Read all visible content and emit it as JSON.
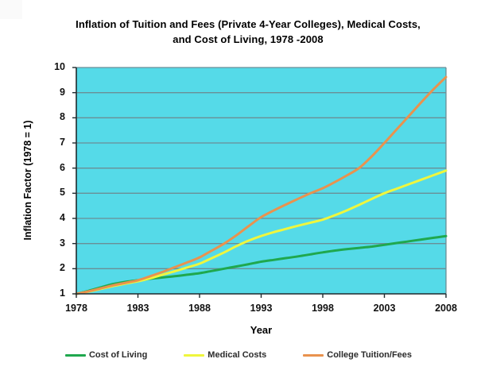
{
  "title": {
    "line1": "Inflation of Tuition  and Fees (Private 4-Year Colleges), Medical Costs,",
    "line2": "and Cost of Living, 1978 -2008"
  },
  "chart_data": {
    "type": "line",
    "title": "Inflation of Tuition and Fees (Private 4-Year Colleges), Medical Costs, and Cost of Living, 1978 -2008",
    "xlabel": "Year",
    "ylabel": "Inflation Factor (1978 = 1)",
    "xlim": [
      1978,
      2008
    ],
    "ylim": [
      1,
      10
    ],
    "xticks": [
      1978,
      1983,
      1988,
      1993,
      1998,
      2003,
      2008
    ],
    "yticks": [
      1,
      2,
      3,
      4,
      5,
      6,
      7,
      8,
      9,
      10
    ],
    "grid": true,
    "legend_position": "bottom",
    "colors": {
      "plot_background": "#55dae8",
      "gridline": "#6a8e96",
      "axis_dark": "#1f2a2d",
      "border_light": "#6a8e96",
      "text": "#000000"
    },
    "x": [
      1978,
      1979,
      1980,
      1981,
      1982,
      1983,
      1984,
      1985,
      1986,
      1987,
      1988,
      1989,
      1990,
      1991,
      1992,
      1993,
      1994,
      1995,
      1996,
      1997,
      1998,
      1999,
      2000,
      2001,
      2002,
      2003,
      2004,
      2005,
      2006,
      2007,
      2008
    ],
    "series": [
      {
        "name": "Cost of Living",
        "color": "#1fa84e",
        "values": [
          1.0,
          1.12,
          1.26,
          1.39,
          1.48,
          1.54,
          1.6,
          1.65,
          1.7,
          1.76,
          1.82,
          1.91,
          2.0,
          2.09,
          2.18,
          2.28,
          2.35,
          2.42,
          2.49,
          2.57,
          2.65,
          2.72,
          2.78,
          2.83,
          2.88,
          2.95,
          3.02,
          3.09,
          3.16,
          3.23,
          3.3
        ]
      },
      {
        "name": "Medical Costs",
        "color": "#eff63d",
        "values": [
          1.0,
          1.09,
          1.2,
          1.31,
          1.41,
          1.5,
          1.62,
          1.76,
          1.9,
          2.05,
          2.2,
          2.42,
          2.65,
          2.9,
          3.12,
          3.3,
          3.45,
          3.58,
          3.71,
          3.83,
          3.95,
          4.13,
          4.33,
          4.55,
          4.78,
          5.0,
          5.18,
          5.36,
          5.54,
          5.72,
          5.9
        ]
      },
      {
        "name": "College Tuition/Fees",
        "color": "#e9924e",
        "values": [
          1.0,
          1.1,
          1.22,
          1.34,
          1.44,
          1.54,
          1.7,
          1.87,
          2.06,
          2.25,
          2.45,
          2.72,
          3.0,
          3.33,
          3.7,
          4.05,
          4.31,
          4.55,
          4.78,
          5.0,
          5.2,
          5.45,
          5.72,
          6.02,
          6.48,
          7.0,
          7.54,
          8.08,
          8.62,
          9.14,
          9.62
        ]
      }
    ]
  }
}
